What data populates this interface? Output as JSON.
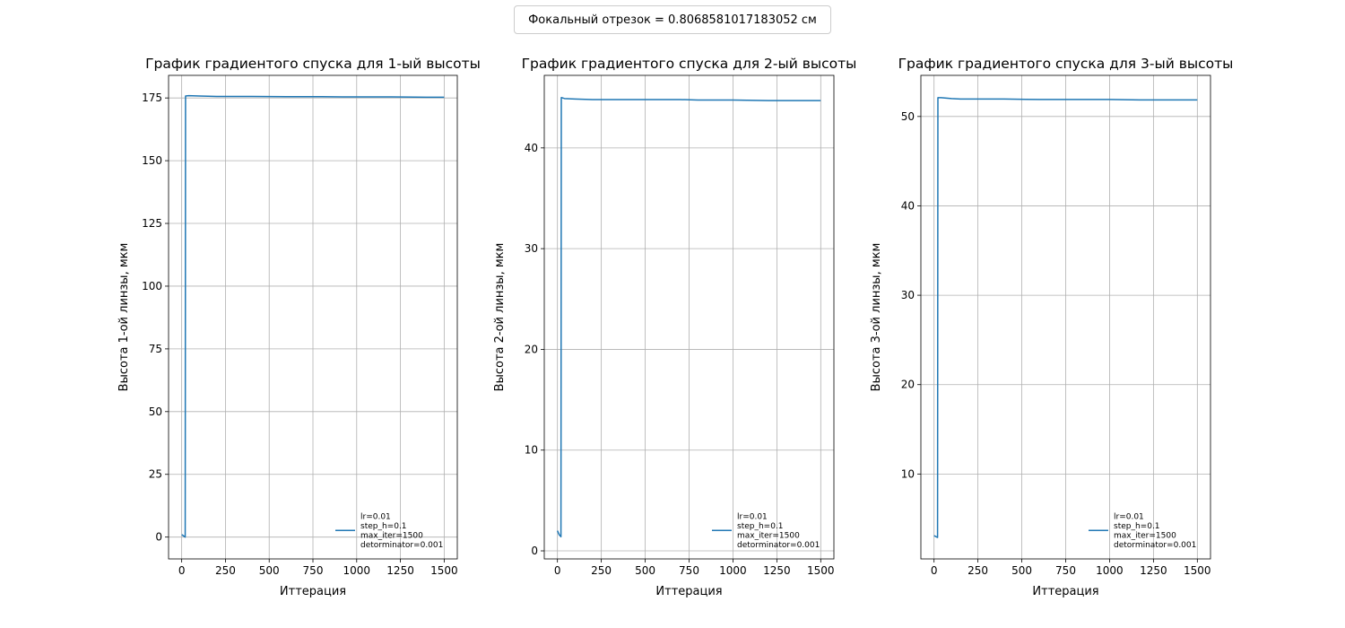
{
  "suptitle": "Фокальный отрезок = 0.8068581017183052 см",
  "chart_data": [
    {
      "type": "line",
      "title": "График градиентого спуска для 1-ый высоты",
      "xlabel": "Иттерация",
      "ylabel": "Высота 1-ой линзы, мкм",
      "xlim": [
        -75,
        1575
      ],
      "ylim": [
        -8.7,
        184
      ],
      "xticks": [
        0,
        250,
        500,
        750,
        1000,
        1250,
        1500
      ],
      "yticks": [
        0,
        25,
        50,
        75,
        100,
        125,
        150,
        175
      ],
      "grid": true,
      "legend_position": "lower-right",
      "series": [
        {
          "name": "lr=0.01\nstep_h=0.1\nmax_iter=1500\ndetorminator=0.001",
          "color": "#1f77b4",
          "x": [
            0,
            10,
            20,
            22,
            40,
            100,
            200,
            400,
            600,
            800,
            1000,
            1200,
            1400,
            1500
          ],
          "y": [
            1.0,
            0.5,
            0.0,
            175.8,
            175.9,
            175.8,
            175.6,
            175.6,
            175.5,
            175.5,
            175.4,
            175.4,
            175.3,
            175.3
          ]
        }
      ]
    },
    {
      "type": "line",
      "title": "График градиентого спуска для 2-ый высоты",
      "xlabel": "Иттерация",
      "ylabel": "Высота 2-ой линзы, мкм",
      "xlim": [
        -75,
        1575
      ],
      "ylim": [
        -0.8,
        47.2
      ],
      "xticks": [
        0,
        250,
        500,
        750,
        1000,
        1250,
        1500
      ],
      "yticks": [
        0,
        10,
        20,
        30,
        40
      ],
      "grid": true,
      "legend_position": "lower-right",
      "series": [
        {
          "name": "lr=0.01\nstep_h=0.1\nmax_iter=1500\ndetorminator=0.001",
          "color": "#1f77b4",
          "x": [
            0,
            10,
            20,
            22,
            40,
            100,
            200,
            400,
            600,
            700,
            800,
            1000,
            1200,
            1250,
            1500
          ],
          "y": [
            2.0,
            1.6,
            1.4,
            45.0,
            44.9,
            44.85,
            44.8,
            44.8,
            44.8,
            44.8,
            44.75,
            44.75,
            44.7,
            44.7,
            44.7
          ]
        }
      ]
    },
    {
      "type": "line",
      "title": "График градиентого спуска для 3-ый высоты",
      "xlabel": "Иттерация",
      "ylabel": "Высота 3-ой линзы, мкм",
      "xlim": [
        -75,
        1575
      ],
      "ylim": [
        0.5,
        54.6
      ],
      "xticks": [
        0,
        250,
        500,
        750,
        1000,
        1250,
        1500
      ],
      "yticks": [
        10,
        20,
        30,
        40,
        50
      ],
      "grid": true,
      "legend_position": "lower-right",
      "series": [
        {
          "name": "lr=0.01\nstep_h=0.1\nmax_iter=1500\ndetorminator=0.001",
          "color": "#1f77b4",
          "x": [
            0,
            10,
            20,
            22,
            40,
            100,
            150,
            200,
            400,
            600,
            800,
            1000,
            1200,
            1400,
            1500
          ],
          "y": [
            3.1,
            3.0,
            2.9,
            52.1,
            52.1,
            52.0,
            51.95,
            51.95,
            51.95,
            51.9,
            51.9,
            51.9,
            51.85,
            51.85,
            51.85
          ]
        }
      ]
    }
  ]
}
